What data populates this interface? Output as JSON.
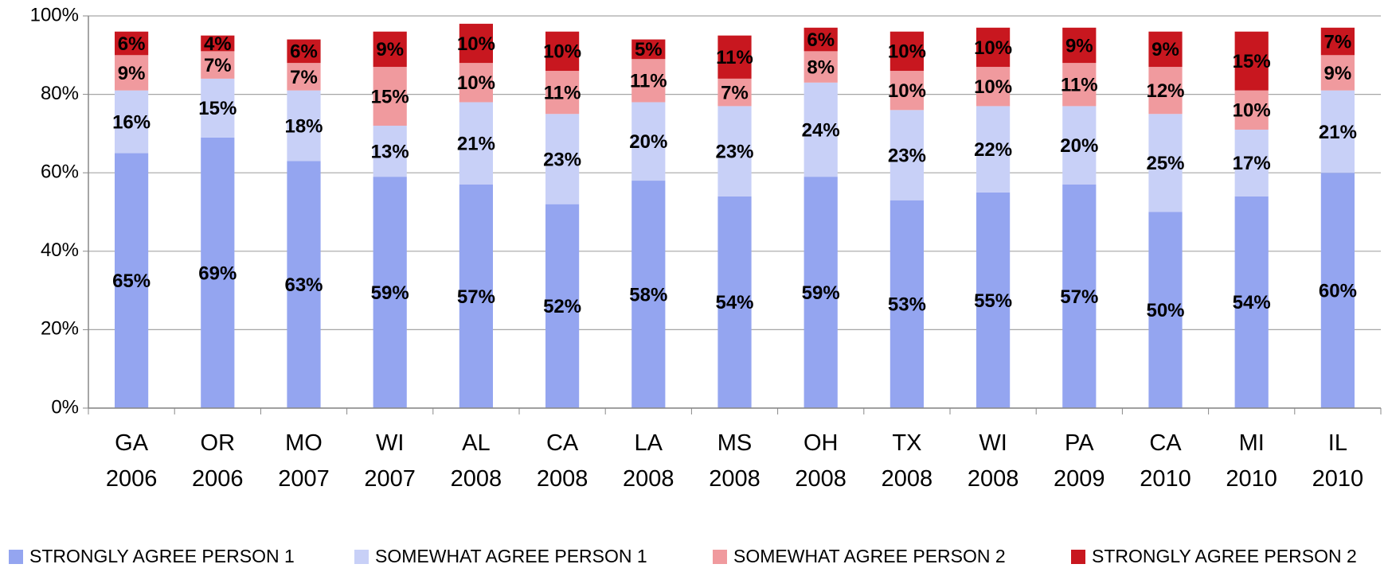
{
  "chart_data": {
    "type": "stacked-bar",
    "categories": [
      "GA 2006",
      "OR 2006",
      "MO 2007",
      "WI 2007",
      "AL 2008",
      "CA 2008",
      "LA 2008",
      "MS 2008",
      "OH 2008",
      "TX 2008",
      "WI 2008",
      "PA 2009",
      "CA 2010",
      "MI 2010",
      "IL 2010"
    ],
    "series": [
      {
        "name": "STRONGLY AGREE PERSON 1",
        "color": "#94a5f0",
        "values": [
          65,
          69,
          63,
          59,
          57,
          52,
          58,
          54,
          59,
          53,
          55,
          57,
          50,
          54,
          60
        ],
        "value_labels": [
          "65%",
          "69%",
          "63%",
          "59%",
          "57%",
          "52%",
          "58%",
          "54%",
          "59%",
          "53%",
          "55%",
          "57%",
          "50%",
          "54%",
          "60%"
        ]
      },
      {
        "name": "SOMEWHAT AGREE PERSON 1",
        "color": "#c8d0f7",
        "values": [
          16,
          15,
          18,
          13,
          21,
          23,
          20,
          23,
          24,
          23,
          22,
          20,
          25,
          17,
          21
        ],
        "value_labels": [
          "16%",
          "15%",
          "18%",
          "13%",
          "21%",
          "23%",
          "20%",
          "23%",
          "24%",
          "23%",
          "22%",
          "20%",
          "25%",
          "17%",
          "21%"
        ]
      },
      {
        "name": "SOMEWHAT AGREE PERSON 2",
        "color": "#f09a9e",
        "values": [
          9,
          7,
          7,
          15,
          10,
          11,
          11,
          7,
          8,
          10,
          10,
          11,
          12,
          10,
          9
        ],
        "value_labels": [
          "9%",
          "7%",
          "7%",
          "15%",
          "10%",
          "11%",
          "11%",
          "7%",
          "8%",
          "10%",
          "10%",
          "11%",
          "12%",
          "10%",
          "9%"
        ]
      },
      {
        "name": "STRONGLY AGREE PERSON 2",
        "color": "#c8171f",
        "values": [
          6,
          4,
          6,
          9,
          10,
          10,
          5,
          11,
          6,
          10,
          10,
          9,
          9,
          15,
          7
        ],
        "value_labels": [
          "6%",
          "4%",
          "6%",
          "9%",
          "10%",
          "10%",
          "5%",
          "11%",
          "6%",
          "10%",
          "10%",
          "9%",
          "9%",
          "15%",
          "7%"
        ]
      }
    ],
    "ylim": [
      0,
      100
    ],
    "yticks": [
      {
        "value": 0,
        "label": "0%"
      },
      {
        "value": 20,
        "label": "20%"
      },
      {
        "value": 40,
        "label": "40%"
      },
      {
        "value": 60,
        "label": "60%"
      },
      {
        "value": 80,
        "label": "80%"
      },
      {
        "value": 100,
        "label": "100%"
      }
    ],
    "grid": true,
    "legend": "bottom"
  }
}
